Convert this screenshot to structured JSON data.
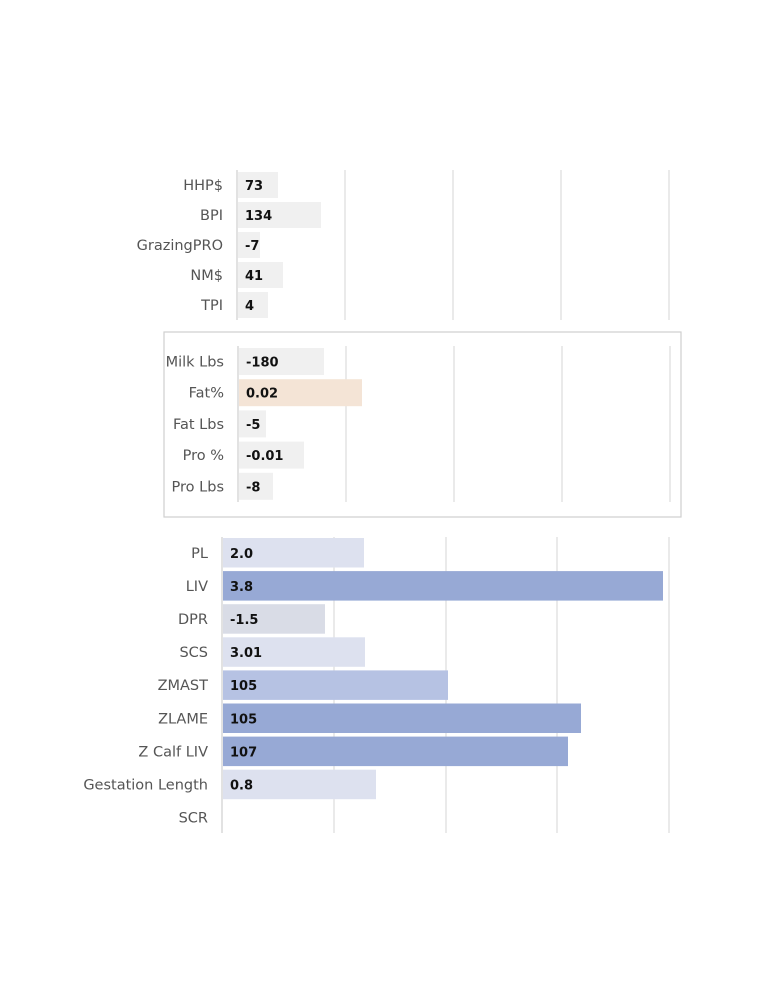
{
  "chart_data": [
    {
      "type": "bar",
      "orientation": "horizontal",
      "categories": [
        "HHP$",
        "BPI",
        "GrazingPRO",
        "NM$",
        "TPI"
      ],
      "values": [
        73,
        134,
        -7,
        41,
        4
      ],
      "value_labels": [
        "73",
        "134",
        "-7",
        "41",
        "4"
      ],
      "colors": [
        "#f0f0f0",
        "#f0f0f0",
        "#f0f0f0",
        "#f0f0f0",
        "#f0f0f0"
      ],
      "grid": true
    },
    {
      "type": "bar",
      "orientation": "horizontal",
      "categories": [
        "Milk Lbs",
        "Fat%",
        "Fat Lbs",
        "Pro %",
        "Pro Lbs"
      ],
      "values": [
        -180,
        0.02,
        -5,
        -0.01,
        -8
      ],
      "value_labels": [
        "-180",
        "0.02",
        "-5",
        "-0.01",
        "-8"
      ],
      "colors": [
        "#f0f0f0",
        "#f4e4d6",
        "#f0f0f0",
        "#f0f0f0",
        "#f0f0f0"
      ],
      "grid": true,
      "framed": true
    },
    {
      "type": "bar",
      "orientation": "horizontal",
      "categories": [
        "PL",
        "LIV",
        "DPR",
        "SCS",
        "ZMAST",
        "ZLAME",
        "Z Calf LIV",
        "Gestation Length",
        "SCR"
      ],
      "values": [
        2.0,
        3.8,
        -1.5,
        3.01,
        105,
        105,
        107,
        0.8,
        null
      ],
      "value_labels": [
        "2.0",
        "3.8",
        "-1.5",
        "3.01",
        "105",
        "105",
        "107",
        "0.8",
        ""
      ],
      "colors": [
        "#dde1ef",
        "#97a9d5",
        "#d9dce6",
        "#dde1ef",
        "#b6c2e3",
        "#97a9d5",
        "#97a9d5",
        "#dde1ef",
        "#ffffff"
      ],
      "grid": true
    }
  ]
}
